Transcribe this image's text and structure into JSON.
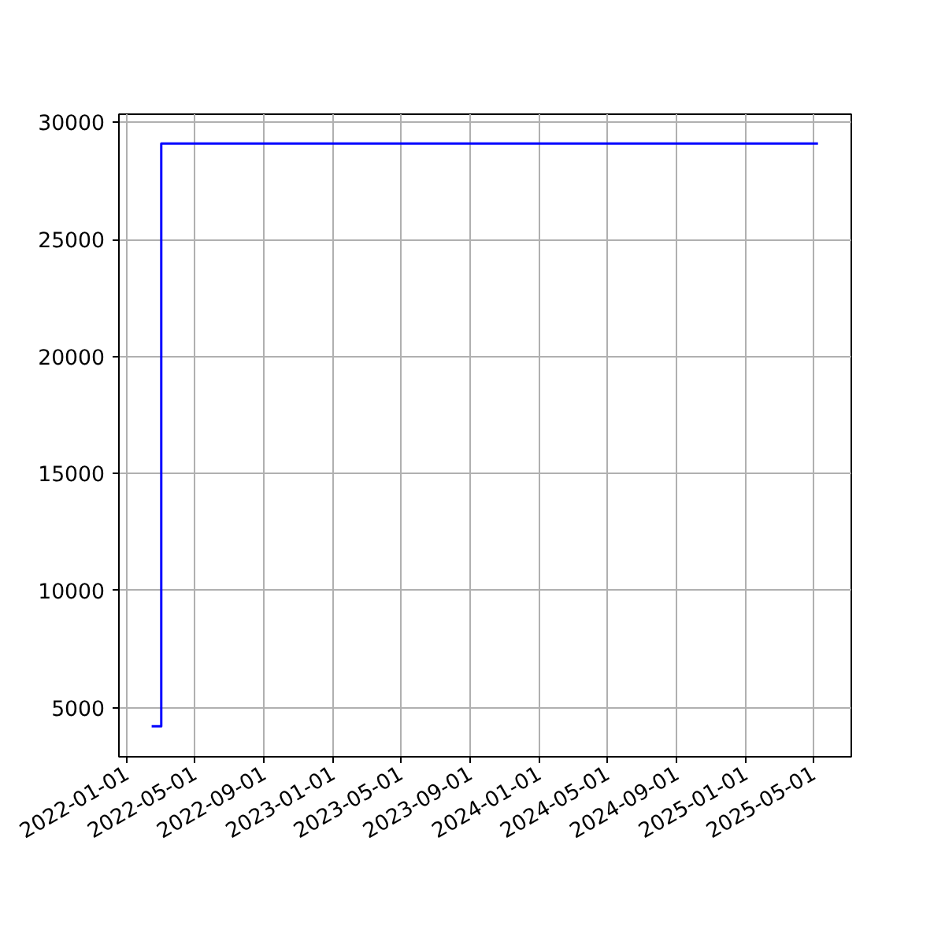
{
  "chart_data": {
    "type": "step",
    "x": [
      "2022-02-14",
      "2022-03-03",
      "2025-05-09"
    ],
    "series": [
      {
        "color": "#0000ff",
        "values": [
          4200,
          29100,
          29100
        ]
      }
    ],
    "xlim": [
      "2021-12-18",
      "2025-07-07"
    ],
    "ylim": [
      2900,
      30350
    ],
    "xticks": [
      "2022-01-01",
      "2022-05-01",
      "2022-09-01",
      "2023-01-01",
      "2023-05-01",
      "2023-09-01",
      "2024-01-01",
      "2024-05-01",
      "2024-09-01",
      "2025-01-01",
      "2025-05-01"
    ],
    "yticks": [
      5000,
      10000,
      15000,
      20000,
      25000,
      30000
    ],
    "grid": true
  }
}
